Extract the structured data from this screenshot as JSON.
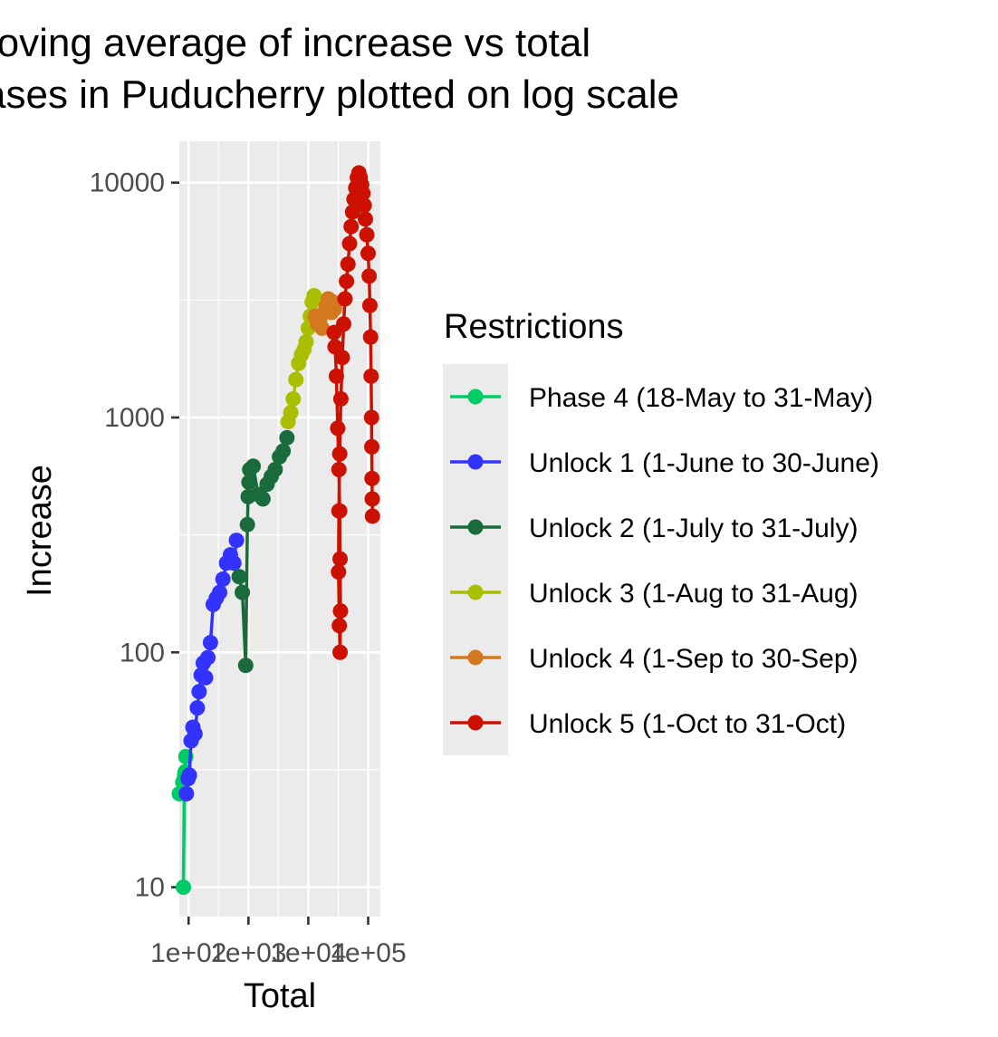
{
  "chart_data": {
    "type": "line",
    "title": [
      "Moving average of increase vs total",
      "cases in Puducherry plotted on log scale"
    ],
    "xlabel": "Total",
    "ylabel": "Increase",
    "x_scale": "log10",
    "y_scale": "log10",
    "xlim": [
      70,
      160000
    ],
    "ylim": [
      7.5,
      15000
    ],
    "x_ticks": [
      100,
      1000,
      10000,
      100000
    ],
    "x_tick_labels": [
      "1e+02",
      "1e+03",
      "1e+04",
      "1e+05"
    ],
    "y_ticks": [
      10,
      100,
      1000,
      10000
    ],
    "y_tick_labels": [
      "10",
      "100",
      "1000",
      "10000"
    ],
    "grid": true,
    "panel_background": "#EBEBEB",
    "legend": {
      "title": "Restrictions",
      "position": "right"
    },
    "series": [
      {
        "name": "Phase 4 (18-May to 31-May)",
        "color": "#00CC66",
        "x": [
          70,
          80,
          85,
          82,
          86,
          88,
          90
        ],
        "y": [
          25,
          28,
          29,
          10,
          30,
          31,
          36
        ]
      },
      {
        "name": "Unlock 1 (1-June to 30-June)",
        "color": "#3333FF",
        "x": [
          92,
          98,
          103,
          110,
          118,
          128,
          140,
          150,
          162,
          176,
          192,
          210,
          232,
          258,
          290,
          330,
          375,
          430,
          500,
          570,
          630
        ],
        "y": [
          25,
          29,
          30,
          42,
          48,
          45,
          58,
          68,
          80,
          90,
          78,
          95,
          110,
          160,
          170,
          180,
          205,
          240,
          260,
          240,
          300
        ]
      },
      {
        "name": "Unlock 2 (1-July to 31-July)",
        "color": "#1A6B3C",
        "x": [
          700,
          790,
          900,
          960,
          990,
          1020,
          1050,
          1200,
          1450,
          1750,
          2050,
          2400,
          2800,
          3300,
          3800,
          4400
        ],
        "y": [
          210,
          180,
          88,
          350,
          460,
          530,
          600,
          620,
          470,
          450,
          520,
          560,
          600,
          680,
          720,
          820
        ]
      },
      {
        "name": "Unlock 3 (1-Aug to 31-Aug)",
        "color": "#AABF00",
        "x": [
          4600,
          5100,
          5600,
          6200,
          6900,
          7700,
          8500,
          9200,
          10000,
          10800,
          11600,
          12500
        ],
        "y": [
          960,
          1050,
          1200,
          1450,
          1700,
          1850,
          1950,
          2100,
          2400,
          2700,
          3100,
          3300
        ]
      },
      {
        "name": "Unlock 4 (1-Sep to 30-Sep)",
        "color": "#D2781E",
        "x": [
          13000,
          14200,
          15500,
          17000,
          18500,
          20000,
          21500,
          23000,
          24500,
          26000,
          27500
        ],
        "y": [
          2700,
          2500,
          2600,
          2400,
          2800,
          3000,
          3200,
          3000,
          2800,
          3100,
          2900
        ]
      },
      {
        "name": "Unlock 5 (1-Oct to 31-Oct)",
        "color": "#CC1100",
        "x": [
          27000,
          28000,
          29500,
          31000,
          32500,
          33500,
          34000,
          34500,
          34000,
          33000,
          32000,
          32500,
          33500,
          35000,
          37000,
          39000,
          41000,
          43500,
          46000,
          49000,
          52000,
          55000,
          58000,
          62000,
          66000,
          70000,
          74000,
          78000,
          82000,
          86000,
          90000,
          95000,
          100000,
          104000,
          107000,
          110000,
          112000,
          114000,
          115000,
          116000,
          117000,
          118000
        ],
        "y": [
          2300,
          2000,
          1500,
          900,
          600,
          400,
          250,
          150,
          100,
          130,
          220,
          400,
          700,
          1200,
          1800,
          2500,
          3200,
          3800,
          4500,
          5500,
          6500,
          7500,
          8500,
          9500,
          10500,
          11000,
          10500,
          9800,
          9000,
          8000,
          7000,
          6000,
          5000,
          4000,
          3000,
          2200,
          1500,
          1000,
          750,
          550,
          450,
          380
        ]
      }
    ]
  }
}
